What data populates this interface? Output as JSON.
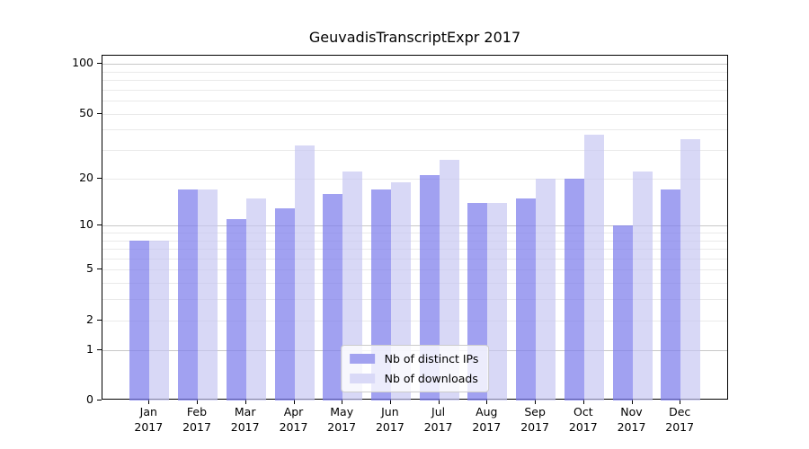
{
  "chart_data": {
    "type": "bar",
    "title": "GeuvadisTranscriptExpr 2017",
    "categories": [
      "Jan",
      "Feb",
      "Mar",
      "Apr",
      "May",
      "Jun",
      "Jul",
      "Aug",
      "Sep",
      "Oct",
      "Nov",
      "Dec"
    ],
    "year_label": "2017",
    "series": [
      {
        "name": "Nb of distinct IPs",
        "color": "#a2a2f0",
        "bar_fill": "rgba(125,125,235,0.72)",
        "values": [
          8,
          17,
          11,
          13,
          16,
          17,
          21,
          14,
          15,
          20,
          10,
          17
        ]
      },
      {
        "name": "Nb of downloads",
        "color": "#d9d9f7",
        "bar_fill": "rgba(198,198,242,0.68)",
        "values": [
          8,
          17,
          15,
          32,
          22,
          19,
          26,
          14,
          20,
          37,
          22,
          35
        ]
      }
    ],
    "yscale": "log1p",
    "ylim": [
      0,
      112
    ],
    "yticks": [
      0,
      1,
      2,
      5,
      10,
      20,
      50,
      100
    ],
    "grid": {
      "on": true,
      "major_values": [
        1,
        10,
        100
      ],
      "minor_values": [
        2,
        3,
        4,
        5,
        6,
        7,
        8,
        9,
        20,
        30,
        40,
        50,
        60,
        70,
        80,
        90
      ],
      "major_color": "#c8c8c8",
      "minor_color": "#eaeaea"
    },
    "legend_position": "lower center"
  },
  "style": {
    "background": "#ffffff",
    "axis_color": "#000000",
    "text_color": "#000000",
    "legend_border": "#cccccc"
  }
}
